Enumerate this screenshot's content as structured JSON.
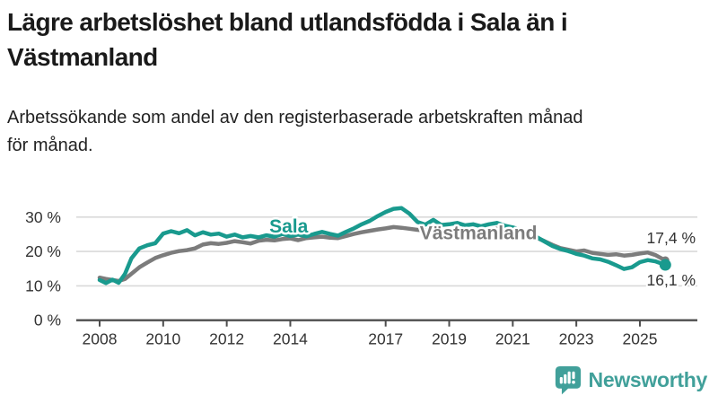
{
  "header": {
    "title_line1": "Lägre arbetslöshet bland utlandsfödda i Sala än i",
    "title_line2": "Västmanland",
    "subtitle_line1": "Arbetssökande som andel av den registerbaserade arbetskraften månad",
    "subtitle_line2": "för månad."
  },
  "branding": {
    "logo_text": "Newsworthy",
    "logo_color": "#41a09a"
  },
  "colors": {
    "grid": "#d9d9d9",
    "axis": "#4d4d4d",
    "tick_text": "#333333",
    "end_label_text": "#333333"
  },
  "chart_data": {
    "type": "line",
    "xlabel": "",
    "ylabel": "",
    "ylim": [
      0,
      34
    ],
    "xlim": [
      2008,
      2025.8
    ],
    "grid": "horizontal",
    "y_ticks": [
      {
        "v": 0,
        "label": "0 %"
      },
      {
        "v": 10,
        "label": "10 %"
      },
      {
        "v": 20,
        "label": "20 %"
      },
      {
        "v": 30,
        "label": "30 %"
      }
    ],
    "x_ticks": [
      {
        "v": 2008,
        "label": "2008"
      },
      {
        "v": 2010,
        "label": "2010"
      },
      {
        "v": 2012,
        "label": "2012"
      },
      {
        "v": 2014,
        "label": "2014"
      },
      {
        "v": 2017,
        "label": "2017"
      },
      {
        "v": 2019,
        "label": "2019"
      },
      {
        "v": 2021,
        "label": "2021"
      },
      {
        "v": 2023,
        "label": "2023"
      },
      {
        "v": 2025,
        "label": "2025"
      }
    ],
    "series": [
      {
        "id": "vastmanland",
        "name": "Västmanland",
        "color": "#7c7c7c",
        "end_label": "17,4 %",
        "end_value": 17.4,
        "end_label_side": "above",
        "end_dot_radius": 4.5,
        "label_pos": {
          "x": 2019.92,
          "y": 25.4
        },
        "points": [
          [
            2008,
            12.4
          ],
          [
            2008.2,
            12
          ],
          [
            2008.4,
            11.7
          ],
          [
            2008.6,
            11.4
          ],
          [
            2008.8,
            12
          ],
          [
            2009,
            13.5
          ],
          [
            2009.25,
            15.4
          ],
          [
            2009.5,
            16.8
          ],
          [
            2009.75,
            18.1
          ],
          [
            2010,
            18.9
          ],
          [
            2010.25,
            19.6
          ],
          [
            2010.5,
            20.1
          ],
          [
            2010.75,
            20.4
          ],
          [
            2011,
            20.9
          ],
          [
            2011.25,
            22
          ],
          [
            2011.5,
            22.4
          ],
          [
            2011.75,
            22.2
          ],
          [
            2012,
            22.5
          ],
          [
            2012.25,
            23
          ],
          [
            2012.5,
            22.7
          ],
          [
            2012.75,
            22.3
          ],
          [
            2013,
            23.1
          ],
          [
            2013.25,
            23.4
          ],
          [
            2013.5,
            23.2
          ],
          [
            2013.75,
            23.6
          ],
          [
            2014,
            23.8
          ],
          [
            2014.25,
            23.3
          ],
          [
            2014.5,
            23.9
          ],
          [
            2014.75,
            24.1
          ],
          [
            2015,
            24.3
          ],
          [
            2015.25,
            24
          ],
          [
            2015.5,
            23.9
          ],
          [
            2015.75,
            24.5
          ],
          [
            2016,
            25.1
          ],
          [
            2016.25,
            25.6
          ],
          [
            2016.5,
            26
          ],
          [
            2016.75,
            26.4
          ],
          [
            2017,
            26.7
          ],
          [
            2017.25,
            27.1
          ],
          [
            2017.5,
            26.9
          ],
          [
            2017.75,
            26.6
          ],
          [
            2018,
            26.3
          ],
          [
            2018.25,
            26.1
          ],
          [
            2018.5,
            26
          ],
          [
            2018.75,
            25.8
          ],
          [
            2019,
            25.7
          ],
          [
            2019.25,
            25.9
          ],
          [
            2019.5,
            25.6
          ],
          [
            2019.75,
            25.7
          ],
          [
            2020,
            25.9
          ],
          [
            2020.25,
            26.4
          ],
          [
            2020.5,
            26.6
          ],
          [
            2020.75,
            26.1
          ],
          [
            2021,
            25.7
          ],
          [
            2021.25,
            25.2
          ],
          [
            2021.5,
            24.7
          ],
          [
            2021.75,
            24
          ],
          [
            2022,
            23
          ],
          [
            2022.25,
            21.9
          ],
          [
            2022.5,
            21
          ],
          [
            2022.75,
            20.5
          ],
          [
            2023,
            20
          ],
          [
            2023.25,
            20.3
          ],
          [
            2023.5,
            19.6
          ],
          [
            2023.75,
            19.3
          ],
          [
            2024,
            19
          ],
          [
            2024.25,
            19.2
          ],
          [
            2024.5,
            18.8
          ],
          [
            2024.75,
            19
          ],
          [
            2025,
            19.4
          ],
          [
            2025.25,
            19.7
          ],
          [
            2025.5,
            18.9
          ],
          [
            2025.8,
            17.4
          ]
        ]
      },
      {
        "id": "sala",
        "name": "Sala",
        "color": "#199a8e",
        "end_label": "16,1 %",
        "end_value": 16.1,
        "end_label_side": "below",
        "end_dot_radius": 6.5,
        "label_pos": {
          "x": 2013.95,
          "y": 27.3
        },
        "points": [
          [
            2008,
            11.7
          ],
          [
            2008.2,
            10.8
          ],
          [
            2008.4,
            11.8
          ],
          [
            2008.6,
            10.9
          ],
          [
            2008.8,
            13.5
          ],
          [
            2009,
            18
          ],
          [
            2009.25,
            20.9
          ],
          [
            2009.5,
            21.8
          ],
          [
            2009.75,
            22.4
          ],
          [
            2010,
            25.2
          ],
          [
            2010.25,
            25.9
          ],
          [
            2010.5,
            25.3
          ],
          [
            2010.75,
            26.2
          ],
          [
            2011,
            24.7
          ],
          [
            2011.25,
            25.6
          ],
          [
            2011.5,
            24.9
          ],
          [
            2011.75,
            25.2
          ],
          [
            2012,
            24.3
          ],
          [
            2012.25,
            24.9
          ],
          [
            2012.5,
            24.1
          ],
          [
            2012.75,
            24.5
          ],
          [
            2013,
            24.1
          ],
          [
            2013.25,
            24.7
          ],
          [
            2013.5,
            24.3
          ],
          [
            2013.75,
            25.1
          ],
          [
            2014,
            24.5
          ],
          [
            2014.25,
            24.9
          ],
          [
            2014.5,
            24.4
          ],
          [
            2014.75,
            25.1
          ],
          [
            2015,
            25.7
          ],
          [
            2015.25,
            25.1
          ],
          [
            2015.5,
            24.6
          ],
          [
            2015.75,
            25.7
          ],
          [
            2016,
            26.7
          ],
          [
            2016.25,
            27.9
          ],
          [
            2016.5,
            28.9
          ],
          [
            2016.75,
            30.3
          ],
          [
            2017,
            31.5
          ],
          [
            2017.25,
            32.4
          ],
          [
            2017.5,
            32.6
          ],
          [
            2017.75,
            31
          ],
          [
            2018,
            28.6
          ],
          [
            2018.25,
            27.8
          ],
          [
            2018.5,
            29.2
          ],
          [
            2018.75,
            27.7
          ],
          [
            2019,
            27.9
          ],
          [
            2019.25,
            28.3
          ],
          [
            2019.5,
            27.6
          ],
          [
            2019.75,
            27.9
          ],
          [
            2020,
            27.3
          ],
          [
            2020.25,
            27.9
          ],
          [
            2020.5,
            28.3
          ],
          [
            2020.75,
            27.5
          ],
          [
            2021,
            27
          ],
          [
            2021.25,
            26.3
          ],
          [
            2021.5,
            25.4
          ],
          [
            2021.75,
            24.2
          ],
          [
            2022,
            22.9
          ],
          [
            2022.25,
            21.6
          ],
          [
            2022.5,
            20.7
          ],
          [
            2022.75,
            20.1
          ],
          [
            2023,
            19.3
          ],
          [
            2023.25,
            18.8
          ],
          [
            2023.5,
            18
          ],
          [
            2023.75,
            17.7
          ],
          [
            2024,
            17
          ],
          [
            2024.25,
            16
          ],
          [
            2024.5,
            14.9
          ],
          [
            2024.75,
            15.4
          ],
          [
            2025,
            16.9
          ],
          [
            2025.25,
            17.5
          ],
          [
            2025.5,
            17.1
          ],
          [
            2025.8,
            16.1
          ]
        ]
      }
    ]
  }
}
